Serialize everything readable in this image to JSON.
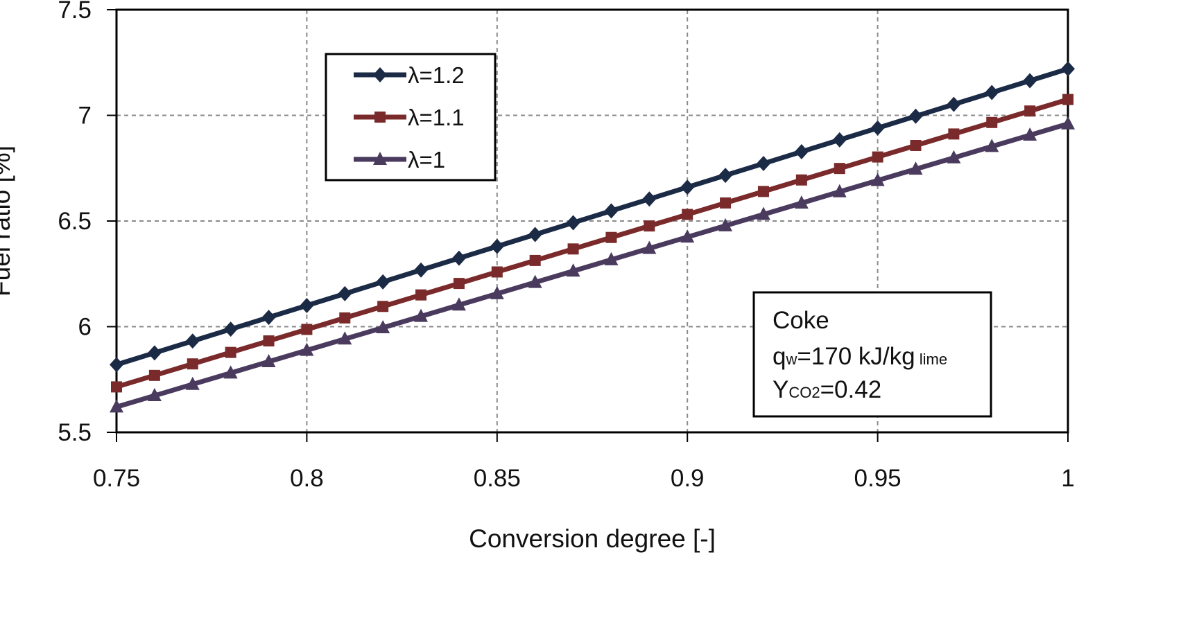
{
  "chart_data": {
    "type": "line",
    "xlabel": "Conversion degree   [-]",
    "ylabel": "Fuel ratio   [%]",
    "xlim": [
      0.75,
      1
    ],
    "ylim": [
      5.5,
      7.5
    ],
    "xticks": [
      "0.75",
      "0.8",
      "0.85",
      "0.9",
      "0.95",
      "1"
    ],
    "yticks": [
      "5.5",
      "6",
      "6.5",
      "7",
      "7.5"
    ],
    "grid": true,
    "legend_position": "top-left",
    "x": [
      0.75,
      0.76,
      0.77,
      0.78,
      0.79,
      0.8,
      0.81,
      0.82,
      0.83,
      0.84,
      0.85,
      0.86,
      0.87,
      0.88,
      0.89,
      0.9,
      0.91,
      0.92,
      0.93,
      0.94,
      0.95,
      0.96,
      0.97,
      0.98,
      0.99,
      1.0
    ],
    "series": [
      {
        "name": "λ=1.2",
        "color": "#1b2a45",
        "marker": "diamond",
        "values": [
          5.82,
          5.876,
          5.932,
          5.988,
          6.044,
          6.1,
          6.156,
          6.212,
          6.268,
          6.324,
          6.38,
          6.436,
          6.492,
          6.548,
          6.604,
          6.66,
          6.716,
          6.772,
          6.828,
          6.884,
          6.94,
          6.996,
          7.052,
          7.108,
          7.164,
          7.22
        ]
      },
      {
        "name": "λ=1.1",
        "color": "#7a2a2a",
        "marker": "square",
        "values": [
          5.715,
          5.7694,
          5.8238,
          5.8782,
          5.9326,
          5.987,
          6.0414,
          6.0958,
          6.1502,
          6.2046,
          6.259,
          6.3134,
          6.3678,
          6.4222,
          6.4766,
          6.531,
          6.5854,
          6.6398,
          6.6942,
          6.7486,
          6.803,
          6.8574,
          6.9118,
          6.9662,
          7.0206,
          7.075
        ]
      },
      {
        "name": "λ=1",
        "color": "#4a3a5e",
        "marker": "triangle",
        "values": [
          5.62,
          5.6736,
          5.7272,
          5.7808,
          5.8344,
          5.888,
          5.9416,
          5.9952,
          6.0488,
          6.1024,
          6.156,
          6.2096,
          6.2632,
          6.3168,
          6.3704,
          6.424,
          6.4776,
          6.5312,
          6.5848,
          6.6384,
          6.692,
          6.7456,
          6.7992,
          6.8528,
          6.9064,
          6.96
        ]
      }
    ],
    "annotation": {
      "line1": "Coke",
      "line2_main": "q",
      "line2_sub": "w",
      "line2_value": "=170 kJ/kg",
      "line2_unit": " lime",
      "line3_main": "Y",
      "line3_sub": "CO2",
      "line3_value": "=0.42",
      "position": "bottom-right"
    }
  }
}
